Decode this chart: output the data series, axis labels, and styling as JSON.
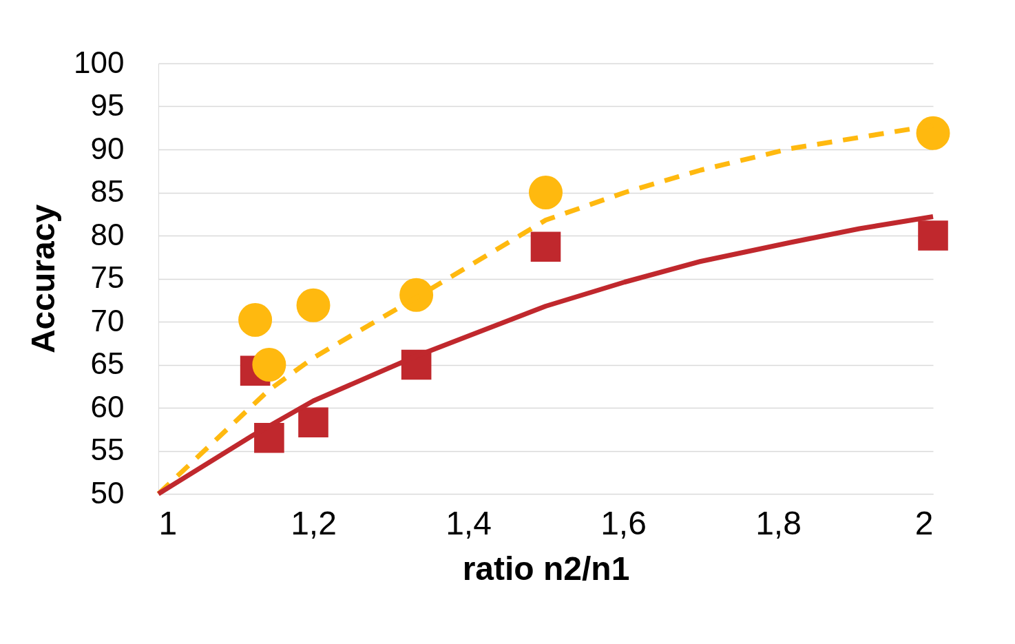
{
  "chart_data": {
    "type": "scatter",
    "xlabel": "ratio n2/n1",
    "ylabel": "Accuracy",
    "xlim": [
      1,
      2
    ],
    "ylim": [
      50,
      100
    ],
    "xticks": [
      1,
      {
        "value": 1.2,
        "label": "1,2"
      },
      {
        "value": 1.4,
        "label": "1,4"
      },
      {
        "value": 1.6,
        "label": "1,6"
      },
      {
        "value": 1.8,
        "label": "1,8"
      },
      2
    ],
    "yticks": [
      50,
      55,
      60,
      65,
      70,
      75,
      80,
      85,
      90,
      95,
      100
    ],
    "grid": "y",
    "series": [
      {
        "type": "scatter",
        "marker": "circle",
        "color": "#ffb90f",
        "x": [
          1.125,
          1.143,
          1.2,
          1.333,
          1.5,
          2
        ],
        "values": [
          70.2,
          65.0,
          71.9,
          73.1,
          85.0,
          91.9
        ]
      },
      {
        "type": "scatter",
        "marker": "square",
        "color": "#c0282d",
        "x": [
          1.125,
          1.143,
          1.2,
          1.333,
          1.5,
          2
        ],
        "values": [
          64.3,
          56.5,
          58.3,
          65.0,
          78.7,
          80.0
        ]
      },
      {
        "type": "line",
        "line_style": "solid",
        "color": "#c0282d",
        "x": [
          1,
          1.122,
          1.2,
          1.333,
          1.402,
          1.5,
          1.602,
          1.7,
          1.816,
          1.905,
          2
        ],
        "values": [
          50,
          56.8,
          60.8,
          66,
          68.4,
          71.8,
          74.6,
          77,
          79.2,
          80.8,
          82.2
        ]
      },
      {
        "type": "line",
        "line_style": "dashed",
        "color": "#ffb90f",
        "x": [
          1,
          1.142,
          1.2,
          1.333,
          1.5,
          1.602,
          1.7,
          1.816,
          1.905,
          2
        ],
        "values": [
          50,
          62,
          65.8,
          72.8,
          81.8,
          85,
          87.6,
          90.1,
          91.4,
          92.8
        ]
      }
    ]
  }
}
